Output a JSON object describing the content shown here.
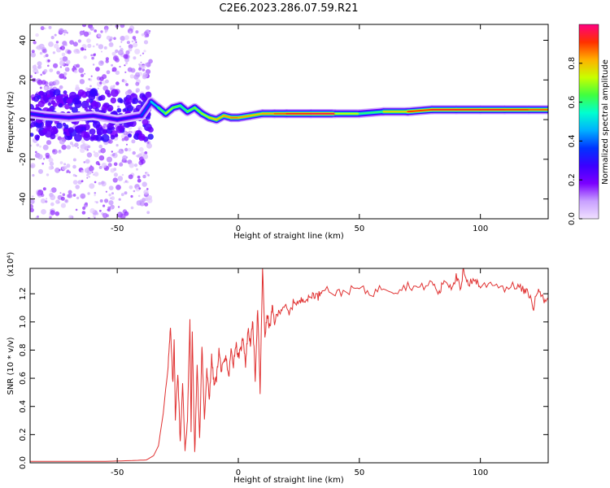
{
  "title": "C2E6.2023.286.07.59.R21",
  "colors": {
    "snr_line": "#e03030",
    "axis": "#000000",
    "background": "#ffffff",
    "colormap": [
      "#f0e0ff",
      "#c8a0ff",
      "#7b00ff",
      "#3b00ff",
      "#0033ff",
      "#00b0ff",
      "#00ffd0",
      "#40ff40",
      "#c8ff00",
      "#ffb000",
      "#ff3000",
      "#ff0080"
    ]
  },
  "chart_data": [
    {
      "type": "heatmap",
      "title": "",
      "xlabel": "Height of straight line (km)",
      "ylabel": "Frequency (Hz)",
      "xlim": [
        -86,
        128
      ],
      "ylim": [
        -50,
        48
      ],
      "x_ticks": [
        -50,
        0,
        50,
        100
      ],
      "x_tick_labels": [
        "-50",
        "0",
        "50",
        "100"
      ],
      "y_ticks": [
        -40,
        -20,
        0,
        20,
        40
      ],
      "y_tick_labels": [
        "-40",
        "-20",
        "0",
        "20",
        "40"
      ],
      "colorbar": {
        "label": "Normalized spectral amplitude",
        "range": [
          0,
          1
        ],
        "ticks": [
          0.0,
          0.2,
          0.4,
          0.6,
          0.8
        ],
        "tick_labels": [
          "0.0",
          "0.2",
          "0.4",
          "0.6",
          "0.8"
        ]
      },
      "noise_region": {
        "x_range": [
          -86,
          -36
        ],
        "y_range": [
          -50,
          48
        ],
        "amplitude": 0.1
      },
      "ridge": {
        "x": [
          -86,
          -80,
          -70,
          -60,
          -50,
          -40,
          -36,
          -33,
          -30,
          -27,
          -24,
          -21,
          -18,
          -15,
          -12,
          -9,
          -6,
          -3,
          0,
          5,
          10,
          15,
          20,
          30,
          40,
          50,
          60,
          70,
          80,
          90,
          100,
          110,
          120,
          128
        ],
        "frequency": [
          3,
          2,
          1,
          2,
          0,
          2,
          9,
          6,
          3,
          6,
          7,
          4,
          6,
          3,
          1,
          0,
          2,
          1,
          1,
          2,
          3,
          3,
          3,
          3,
          3,
          3,
          4,
          4,
          5,
          5,
          5,
          5,
          5,
          5
        ],
        "amplitude": [
          0.35,
          0.3,
          0.3,
          0.3,
          0.3,
          0.3,
          0.45,
          0.55,
          0.7,
          0.7,
          0.6,
          0.6,
          0.7,
          0.65,
          0.75,
          0.8,
          0.8,
          0.85,
          0.85,
          0.8,
          0.8,
          0.85,
          0.9,
          0.95,
          0.95,
          0.5,
          0.7,
          0.85,
          0.95,
          0.9,
          0.95,
          0.9,
          0.9,
          0.85
        ]
      }
    },
    {
      "type": "line",
      "title": "",
      "xlabel": "Height of straight line (km)",
      "ylabel": "SNR (10 * v/v)",
      "y_scale_label": "(x10⁴)",
      "xlim": [
        -86,
        128
      ],
      "ylim": [
        0,
        1.38
      ],
      "x_ticks": [
        -50,
        0,
        50,
        100
      ],
      "x_tick_labels": [
        "-50",
        "0",
        "50",
        "100"
      ],
      "y_ticks": [
        0.0,
        0.2,
        0.4,
        0.6,
        0.8,
        1.0,
        1.2
      ],
      "y_tick_labels": [
        "0.0",
        "0.2",
        "0.4",
        "0.6",
        "0.8",
        "1.0",
        "1.2"
      ],
      "series": [
        {
          "x": [
            -86,
            -70,
            -55,
            -45,
            -38,
            -35,
            -33,
            -31,
            -29,
            -28,
            -27,
            -26.5,
            -26,
            -25,
            -24,
            -23,
            -22,
            -21,
            -20,
            -19.5,
            -19,
            -18,
            -17,
            -16,
            -15,
            -14,
            -13,
            -12,
            -11,
            -10,
            -9,
            -8,
            -7,
            -6,
            -5,
            -4,
            -3,
            -2,
            -1,
            0,
            1,
            2,
            3,
            4,
            5,
            6,
            7,
            8,
            9,
            10,
            11,
            12,
            13,
            14,
            15,
            17,
            19,
            21,
            23,
            25,
            27,
            29,
            31,
            33,
            35,
            40,
            45,
            50,
            55,
            60,
            65,
            70,
            75,
            80,
            83,
            85,
            88,
            90,
            92,
            93,
            95,
            98,
            100,
            105,
            110,
            115,
            118,
            120,
            122,
            124,
            126,
            128
          ],
          "y": [
            0.01,
            0.01,
            0.01,
            0.015,
            0.02,
            0.05,
            0.12,
            0.35,
            0.7,
            0.95,
            0.55,
            0.9,
            0.3,
            0.65,
            0.15,
            0.55,
            0.1,
            0.3,
            1.02,
            0.2,
            0.95,
            0.05,
            0.7,
            0.15,
            0.85,
            0.3,
            0.65,
            0.45,
            0.75,
            0.55,
            0.6,
            0.8,
            0.65,
            0.7,
            0.75,
            0.6,
            0.8,
            0.7,
            0.85,
            0.75,
            0.8,
            0.9,
            0.7,
            0.95,
            0.85,
            1.0,
            0.6,
            1.1,
            0.5,
            1.38,
            0.9,
            1.05,
            0.95,
            1.1,
            1.0,
            1.08,
            1.12,
            1.05,
            1.15,
            1.13,
            1.17,
            1.16,
            1.2,
            1.18,
            1.25,
            1.2,
            1.22,
            1.24,
            1.2,
            1.25,
            1.22,
            1.26,
            1.24,
            1.28,
            1.2,
            1.3,
            1.25,
            1.32,
            1.22,
            1.38,
            1.27,
            1.3,
            1.25,
            1.28,
            1.24,
            1.26,
            1.22,
            1.2,
            1.1,
            1.26,
            1.15,
            1.17
          ]
        }
      ]
    }
  ]
}
